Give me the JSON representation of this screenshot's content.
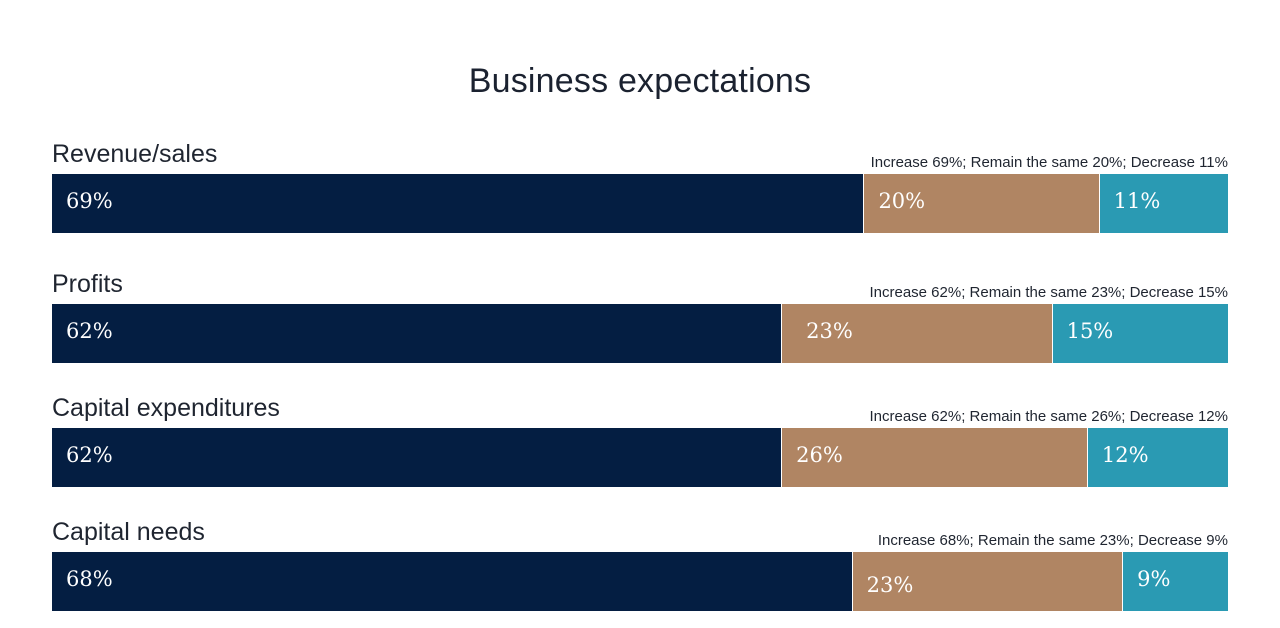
{
  "chart_data": {
    "type": "bar",
    "orientation": "horizontal",
    "stacked": true,
    "normalized_percent": true,
    "title": "Business expectations",
    "categories": [
      "Revenue/sales",
      "Profits",
      "Capital expenditures",
      "Capital needs"
    ],
    "summaries": [
      "Increase 69%; Remain the same 20%; Decrease 11%",
      "Increase 62%; Remain the same 23%; Decrease 15%",
      "Increase 62%; Remain the same 26%; Decrease 12%",
      "Increase 68%; Remain the same 23%; Decrease 9%"
    ],
    "series": [
      {
        "name": "Increase",
        "color": "#041e42",
        "values": [
          69,
          62,
          62,
          68
        ]
      },
      {
        "name": "Remain the same",
        "color": "#b08563",
        "values": [
          20,
          23,
          26,
          23
        ]
      },
      {
        "name": "Decrease",
        "color": "#2a9ab3",
        "values": [
          11,
          15,
          12,
          9
        ]
      }
    ],
    "value_suffix": "%",
    "xlim": [
      0,
      100
    ],
    "grid": false
  }
}
